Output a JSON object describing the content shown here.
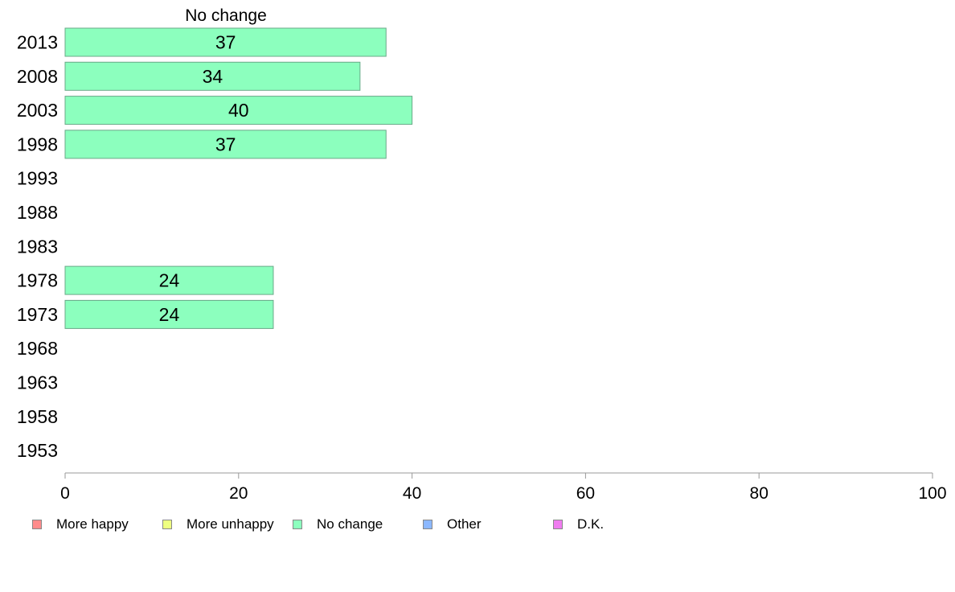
{
  "chart_data": {
    "type": "bar",
    "orientation": "horizontal",
    "title": "No change",
    "categories": [
      "2013",
      "2008",
      "2003",
      "1998",
      "1993",
      "1988",
      "1983",
      "1978",
      "1973",
      "1968",
      "1963",
      "1958",
      "1953"
    ],
    "series": [
      {
        "name": "No change",
        "color": "#8cffbe",
        "values": [
          37,
          34,
          40,
          37,
          null,
          null,
          null,
          24,
          24,
          null,
          null,
          null,
          null
        ],
        "labels": [
          "37",
          "34",
          "40",
          "37",
          "",
          "",
          "",
          "24",
          "24",
          "",
          "",
          "",
          ""
        ]
      }
    ],
    "xlim": [
      0,
      100
    ],
    "xticks": [
      0,
      20,
      40,
      60,
      80,
      100
    ],
    "xtick_labels": [
      "0",
      "20",
      "40",
      "60",
      "80",
      "100"
    ],
    "grid": false,
    "legend_position": "bottom-left",
    "legend": [
      {
        "label": "More happy",
        "color": "#ff8c8c"
      },
      {
        "label": "More unhappy",
        "color": "#eeff80"
      },
      {
        "label": "No change",
        "color": "#8cffbe"
      },
      {
        "label": "Other",
        "color": "#8cb8ff"
      },
      {
        "label": "D.K.",
        "color": "#f07cf0"
      }
    ]
  }
}
